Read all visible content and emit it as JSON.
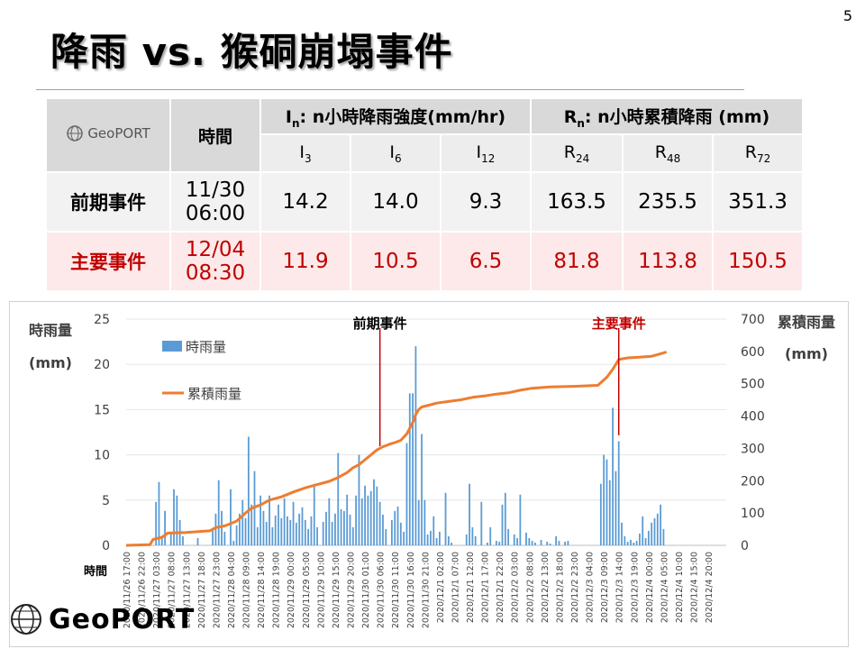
{
  "page_number": "5",
  "title": "降雨 vs. 猴硐崩塌事件",
  "logo_text": "GeoPORT",
  "table": {
    "time_header": "時間",
    "intensity_group": {
      "sym": "I",
      "sub": "n",
      "rest": ": n小時降雨強度(mm/hr)"
    },
    "cumulative_group": {
      "sym": "R",
      "sub": "n",
      "rest": ": n小時累積降雨 (mm)"
    },
    "sub_headers": [
      {
        "sym": "I",
        "sub": "3"
      },
      {
        "sym": "I",
        "sub": "6"
      },
      {
        "sym": "I",
        "sub": "12"
      },
      {
        "sym": "R",
        "sub": "24"
      },
      {
        "sym": "R",
        "sub": "48"
      },
      {
        "sym": "R",
        "sub": "72"
      }
    ],
    "rows": [
      {
        "label": "前期事件",
        "date": "11/30",
        "time": "06:00",
        "values": [
          "14.2",
          "14.0",
          "9.3",
          "163.5",
          "235.5",
          "351.3"
        ]
      },
      {
        "label": "主要事件",
        "date": "12/04",
        "time": "08:30",
        "values": [
          "11.9",
          "10.5",
          "6.5",
          "81.8",
          "113.8",
          "150.5"
        ]
      }
    ]
  },
  "chart_data": {
    "type": "bar+line",
    "left_axis_title_1": "時雨量",
    "left_axis_title_2": "(mm)",
    "right_axis_title_1": "累積雨量",
    "right_axis_title_2": "(mm)",
    "x_axis_title": "時間",
    "left_ylim": [
      0,
      25
    ],
    "left_ticks": [
      0,
      5,
      10,
      15,
      20,
      25
    ],
    "right_ylim": [
      0,
      700
    ],
    "right_ticks": [
      0,
      100,
      200,
      300,
      400,
      500,
      600,
      700
    ],
    "legend": [
      {
        "name": "時雨量",
        "color": "#5b9bd5"
      },
      {
        "name": "累積雨量",
        "color": "#ed7d31"
      }
    ],
    "x_range_hours": 201,
    "x_tick_labels": [
      "2020/11/26 17:00",
      "2020/11/26 22:00",
      "2020/11/27 03:00",
      "2020/11/27 08:00",
      "2020/11/27 13:00",
      "2020/11/27 18:00",
      "2020/11/27 23:00",
      "2020/11/28 04:00",
      "2020/11/28 09:00",
      "2020/11/28 14:00",
      "2020/11/28 19:00",
      "2020/11/29 00:00",
      "2020/11/29 05:00",
      "2020/11/29 10:00",
      "2020/11/29 15:00",
      "2020/11/29 20:00",
      "2020/11/30 01:00",
      "2020/11/30 06:00",
      "2020/11/30 11:00",
      "2020/11/30 16:00",
      "2020/11/30 21:00",
      "2020/12/1 02:00",
      "2020/12/1 07:00",
      "2020/12/1 12:00",
      "2020/12/1 17:00",
      "2020/12/1 22:00",
      "2020/12/2 03:00",
      "2020/12/2 08:00",
      "2020/12/2 13:00",
      "2020/12/2 18:00",
      "2020/12/2 23:00",
      "2020/12/3 04:00",
      "2020/12/3 09:00",
      "2020/12/3 14:00",
      "2020/12/3 19:00",
      "2020/12/4 00:00",
      "2020/12/4 05:00",
      "2020/12/4 10:00",
      "2020/12/4 15:00",
      "2020/12/4 20:00"
    ],
    "hourly_rain": [
      [
        10,
        4.8
      ],
      [
        11,
        7
      ],
      [
        12,
        1
      ],
      [
        13,
        3.8
      ],
      [
        15,
        1.5
      ],
      [
        16,
        6.2
      ],
      [
        17,
        5.5
      ],
      [
        18,
        2.8
      ],
      [
        19,
        1
      ],
      [
        24,
        0.8
      ],
      [
        29,
        1.8
      ],
      [
        30,
        3.5
      ],
      [
        31,
        7.2
      ],
      [
        32,
        3.8
      ],
      [
        33,
        1.5
      ],
      [
        35,
        6.2
      ],
      [
        36,
        0.5
      ],
      [
        37,
        2.2
      ],
      [
        38,
        3.5
      ],
      [
        39,
        5
      ],
      [
        40,
        3
      ],
      [
        41,
        12
      ],
      [
        42,
        4.5
      ],
      [
        43,
        8.2
      ],
      [
        44,
        2
      ],
      [
        45,
        5.5
      ],
      [
        46,
        3.8
      ],
      [
        47,
        2.6
      ],
      [
        48,
        5.5
      ],
      [
        49,
        2
      ],
      [
        50,
        3.3
      ],
      [
        51,
        4.5
      ],
      [
        52,
        3
      ],
      [
        53,
        5.2
      ],
      [
        54,
        3.2
      ],
      [
        55,
        2.8
      ],
      [
        56,
        4.8
      ],
      [
        57,
        2.5
      ],
      [
        58,
        3.5
      ],
      [
        59,
        4.2
      ],
      [
        60,
        2.8
      ],
      [
        61,
        1.8
      ],
      [
        62,
        3.2
      ],
      [
        63,
        6.8
      ],
      [
        64,
        2
      ],
      [
        66,
        2.6
      ],
      [
        67,
        3.7
      ],
      [
        68,
        5.2
      ],
      [
        69,
        2.6
      ],
      [
        70,
        3.5
      ],
      [
        71,
        10.2
      ],
      [
        72,
        4
      ],
      [
        73,
        3.8
      ],
      [
        74,
        5.6
      ],
      [
        75,
        3.4
      ],
      [
        76,
        2
      ],
      [
        77,
        5.5
      ],
      [
        78,
        10
      ],
      [
        79,
        5.2
      ],
      [
        80,
        6.6
      ],
      [
        81,
        5.5
      ],
      [
        82,
        6
      ],
      [
        83,
        7.3
      ],
      [
        84,
        6.5
      ],
      [
        85,
        4.8
      ],
      [
        86,
        3.4
      ],
      [
        87,
        1.8
      ],
      [
        89,
        2.8
      ],
      [
        90,
        3.8
      ],
      [
        91,
        4.3
      ],
      [
        92,
        2.5
      ],
      [
        93,
        1.5
      ],
      [
        94,
        11.3
      ],
      [
        95,
        16.8
      ],
      [
        96,
        16.8
      ],
      [
        97,
        22
      ],
      [
        98,
        5
      ],
      [
        99,
        12.3
      ],
      [
        100,
        5
      ],
      [
        101,
        1.2
      ],
      [
        102,
        1.6
      ],
      [
        103,
        3.2
      ],
      [
        104,
        0.8
      ],
      [
        105,
        1.5
      ],
      [
        107,
        5.8
      ],
      [
        108,
        1
      ],
      [
        109,
        0.3
      ],
      [
        114,
        1.2
      ],
      [
        115,
        6.8
      ],
      [
        116,
        2
      ],
      [
        117,
        1
      ],
      [
        119,
        4.8
      ],
      [
        121,
        0.3
      ],
      [
        122,
        2
      ],
      [
        124,
        0.5
      ],
      [
        125,
        0.4
      ],
      [
        126,
        4.5
      ],
      [
        127,
        5.8
      ],
      [
        128,
        1.8
      ],
      [
        130,
        1.2
      ],
      [
        131,
        0.8
      ],
      [
        132,
        5.6
      ],
      [
        134,
        1.4
      ],
      [
        135,
        0.8
      ],
      [
        136,
        0.5
      ],
      [
        137,
        0.3
      ],
      [
        139,
        0.6
      ],
      [
        141,
        0.4
      ],
      [
        142,
        0.2
      ],
      [
        144,
        1
      ],
      [
        145,
        0.5
      ],
      [
        147,
        0.4
      ],
      [
        148,
        0.5
      ],
      [
        159,
        6.8
      ],
      [
        160,
        10
      ],
      [
        161,
        9.5
      ],
      [
        162,
        7.2
      ],
      [
        163,
        15.2
      ],
      [
        164,
        8.2
      ],
      [
        165,
        11.5
      ],
      [
        166,
        2.5
      ],
      [
        167,
        1
      ],
      [
        168,
        0.4
      ],
      [
        169,
        0.6
      ],
      [
        170,
        0.3
      ],
      [
        171,
        0.5
      ],
      [
        172,
        1.3
      ],
      [
        173,
        3.2
      ],
      [
        174,
        0.8
      ],
      [
        175,
        1.6
      ],
      [
        176,
        2.5
      ],
      [
        177,
        3
      ],
      [
        178,
        3.5
      ],
      [
        179,
        4.5
      ],
      [
        180,
        1.8
      ]
    ],
    "cumulative": [
      [
        0,
        0
      ],
      [
        8,
        2
      ],
      [
        9,
        18
      ],
      [
        12,
        25
      ],
      [
        14,
        38
      ],
      [
        20,
        40
      ],
      [
        28,
        45
      ],
      [
        30,
        55
      ],
      [
        33,
        60
      ],
      [
        37,
        75
      ],
      [
        40,
        100
      ],
      [
        42,
        115
      ],
      [
        45,
        125
      ],
      [
        48,
        140
      ],
      [
        52,
        150
      ],
      [
        56,
        165
      ],
      [
        60,
        178
      ],
      [
        64,
        188
      ],
      [
        68,
        198
      ],
      [
        71,
        210
      ],
      [
        74,
        225
      ],
      [
        76,
        240
      ],
      [
        78,
        250
      ],
      [
        80,
        265
      ],
      [
        82,
        280
      ],
      [
        84,
        295
      ],
      [
        86,
        305
      ],
      [
        88,
        312
      ],
      [
        90,
        318
      ],
      [
        92,
        325
      ],
      [
        94,
        345
      ],
      [
        96,
        380
      ],
      [
        97,
        405
      ],
      [
        98,
        420
      ],
      [
        99,
        428
      ],
      [
        102,
        435
      ],
      [
        104,
        440
      ],
      [
        108,
        445
      ],
      [
        112,
        450
      ],
      [
        116,
        458
      ],
      [
        120,
        462
      ],
      [
        124,
        468
      ],
      [
        128,
        472
      ],
      [
        132,
        480
      ],
      [
        136,
        486
      ],
      [
        142,
        490
      ],
      [
        150,
        492
      ],
      [
        158,
        495
      ],
      [
        161,
        520
      ],
      [
        163,
        545
      ],
      [
        165,
        575
      ],
      [
        168,
        580
      ],
      [
        172,
        582
      ],
      [
        176,
        585
      ],
      [
        178,
        590
      ],
      [
        181,
        598
      ]
    ],
    "annotations": [
      {
        "text": "前期事件",
        "x_hour": 85,
        "color": "#000000"
      },
      {
        "text": "主要事件",
        "x_hour": 165,
        "color": "#c00000"
      }
    ]
  }
}
